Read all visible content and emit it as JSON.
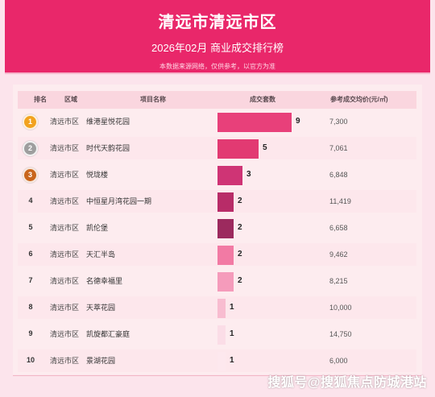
{
  "header": {
    "title": "清远市清远市区",
    "subtitle": "2026年02月  商业成交排行榜",
    "note": "本数据来源网络，仅供参考，以官方为准"
  },
  "table": {
    "columns": {
      "rank": "排名",
      "district": "区域",
      "project": "项目名称",
      "count": "成交套数",
      "price": "参考成交均价(元/㎡)"
    },
    "rows": [
      {
        "rank": "1",
        "district": "清远市区",
        "project": "维港星悦花园",
        "count": 9,
        "price": "7,300",
        "bar_color": "#e8407a"
      },
      {
        "rank": "2",
        "district": "清远市区",
        "project": "时代天韵花园",
        "count": 5,
        "price": "7,061",
        "bar_color": "#e23a72"
      },
      {
        "rank": "3",
        "district": "清远市区",
        "project": "悦珑楼",
        "count": 3,
        "price": "6,848",
        "bar_color": "#cf3475"
      },
      {
        "rank": "4",
        "district": "清远市区",
        "project": "中恒星月湾花园一期",
        "count": 2,
        "price": "11,419",
        "bar_color": "#b82c68"
      },
      {
        "rank": "5",
        "district": "清远市区",
        "project": "凯伦堡",
        "count": 2,
        "price": "6,658",
        "bar_color": "#9c2a5e"
      },
      {
        "rank": "6",
        "district": "清远市区",
        "project": "天汇半岛",
        "count": 2,
        "price": "9,462",
        "bar_color": "#f27aa4"
      },
      {
        "rank": "7",
        "district": "清远市区",
        "project": "名德幸福里",
        "count": 2,
        "price": "8,215",
        "bar_color": "#f59bbb"
      },
      {
        "rank": "8",
        "district": "清远市区",
        "project": "天萃花园",
        "count": 1,
        "price": "10,000",
        "bar_color": "#f8bcd0"
      },
      {
        "rank": "9",
        "district": "清远市区",
        "project": "凯旋都汇豪庭",
        "count": 1,
        "price": "14,750",
        "bar_color": "#fbdde7"
      },
      {
        "rank": "10",
        "district": "清远市区",
        "project": "景湖花园",
        "count": 1,
        "price": "6,000",
        "bar_color": "#fde8ee"
      }
    ]
  },
  "medal_colors": {
    "1": "#f2a21e",
    "2": "#9e9e9e",
    "3": "#c9651c"
  },
  "watermark": "搜狐号@搜狐焦点防城港站"
}
